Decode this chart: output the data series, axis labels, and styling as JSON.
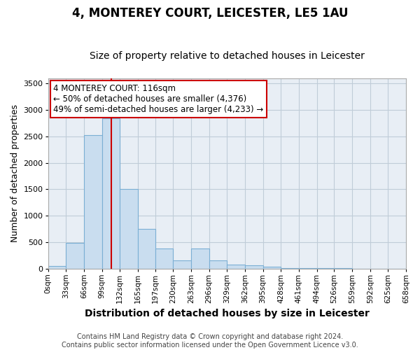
{
  "title": "4, MONTEREY COURT, LEICESTER, LE5 1AU",
  "subtitle": "Size of property relative to detached houses in Leicester",
  "xlabel": "Distribution of detached houses by size in Leicester",
  "ylabel": "Number of detached properties",
  "footer_line1": "Contains HM Land Registry data © Crown copyright and database right 2024.",
  "footer_line2": "Contains public sector information licensed under the Open Government Licence v3.0.",
  "annotation_line1": "4 MONTEREY COURT: 116sqm",
  "annotation_line2": "← 50% of detached houses are smaller (4,376)",
  "annotation_line3": "49% of semi-detached houses are larger (4,233) →",
  "property_size": 116,
  "bin_edges": [
    0,
    33,
    66,
    99,
    132,
    165,
    197,
    230,
    263,
    296,
    329,
    362,
    395,
    428,
    461,
    494,
    526,
    559,
    592,
    625,
    658
  ],
  "bar_heights": [
    50,
    480,
    2530,
    2840,
    1510,
    750,
    375,
    150,
    380,
    150,
    80,
    60,
    30,
    10,
    5,
    5,
    5,
    0,
    0,
    0
  ],
  "bar_color": "#c9ddef",
  "bar_edge_color": "#7bafd4",
  "vline_color": "#cc0000",
  "annotation_box_color": "#cc0000",
  "background_color": "#ffffff",
  "plot_bg_color": "#e8eef5",
  "grid_color": "#c0ccd8",
  "ylim": [
    0,
    3600
  ],
  "yticks": [
    0,
    500,
    1000,
    1500,
    2000,
    2500,
    3000,
    3500
  ],
  "title_fontsize": 12,
  "subtitle_fontsize": 10,
  "axis_label_fontsize": 9,
  "tick_fontsize": 7.5,
  "annotation_fontsize": 8.5,
  "footer_fontsize": 7
}
